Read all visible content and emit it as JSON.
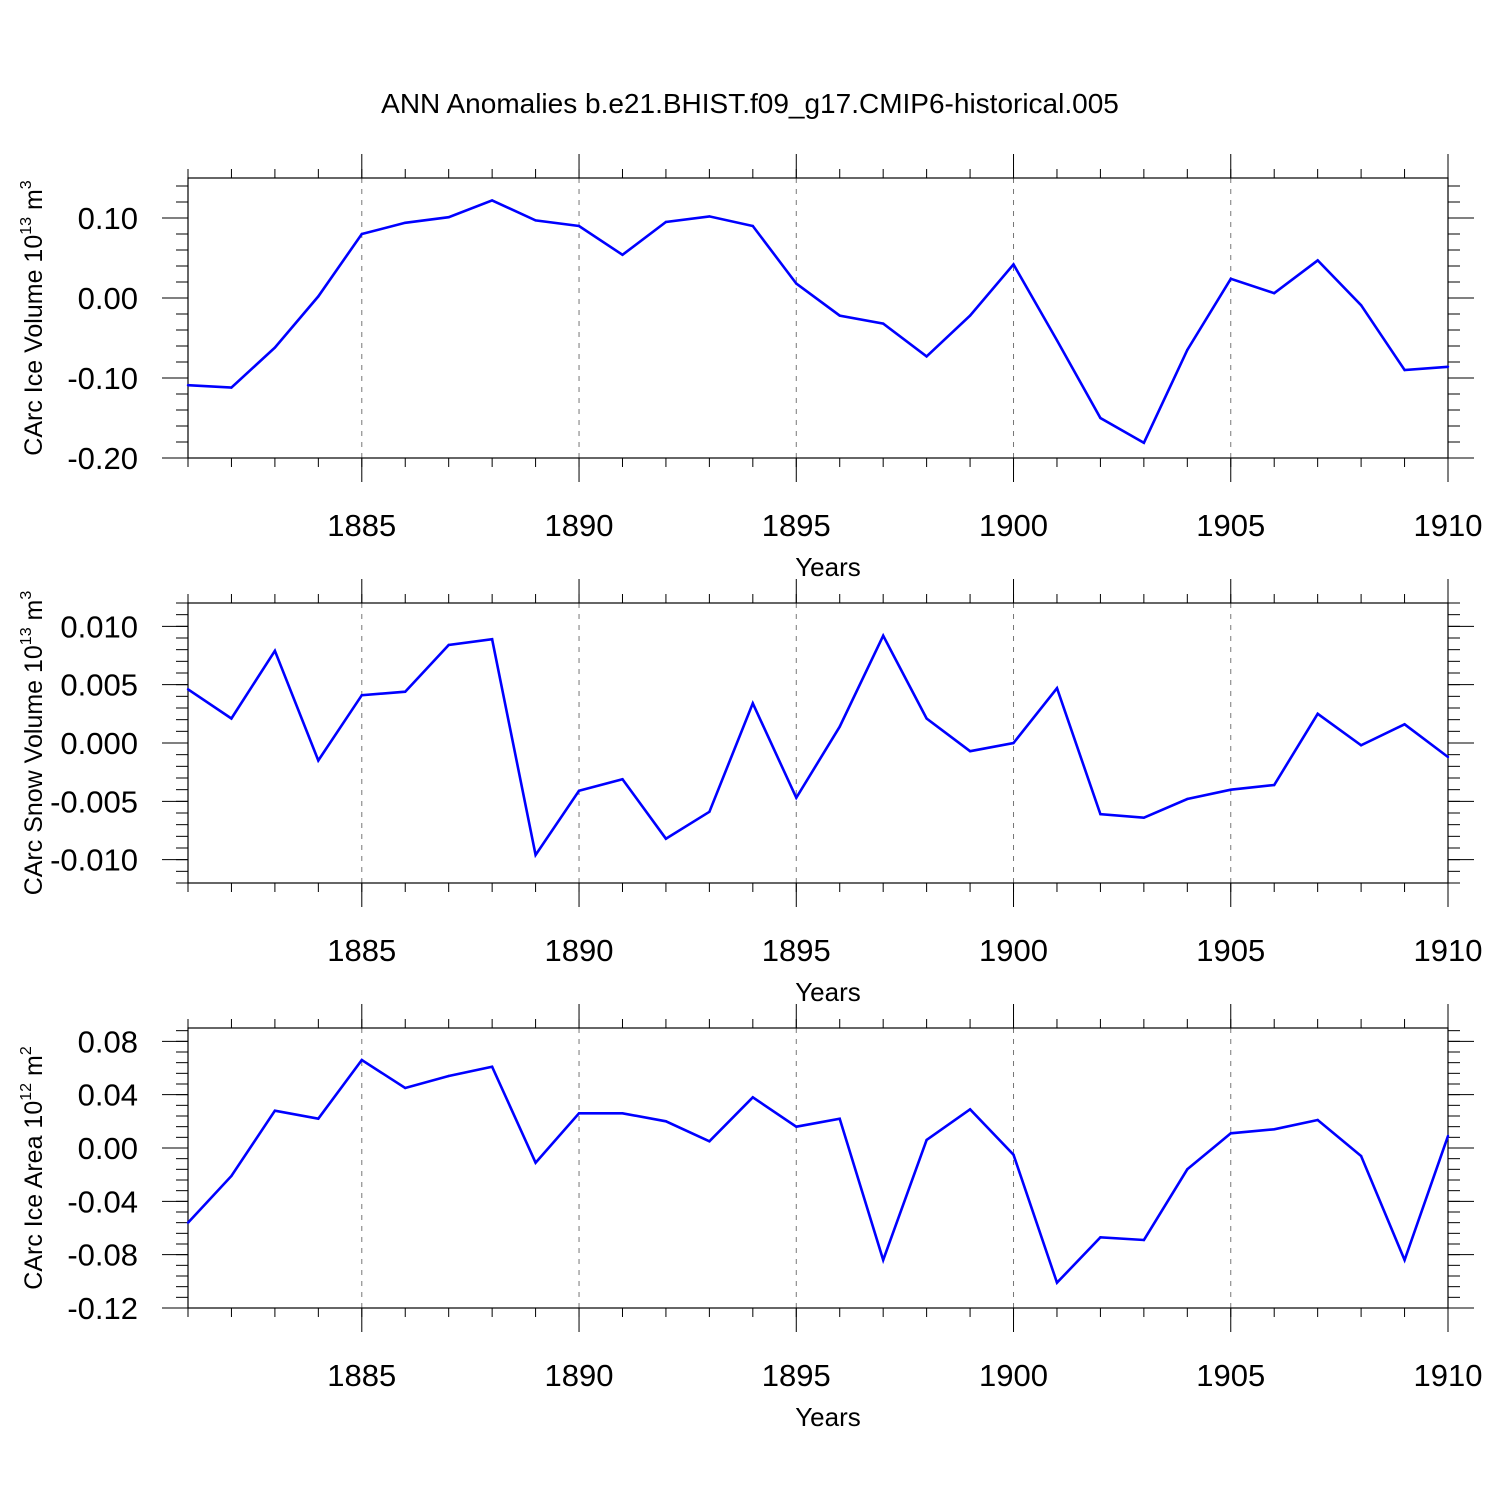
{
  "title": "ANN Anomalies b.e21.BHIST.f09_g17.CMIP6-historical.005",
  "colors": {
    "series": "#0000ff",
    "axes": "#000000",
    "grid": "#777777"
  },
  "chart_data": [
    {
      "type": "line",
      "name": "ice-volume",
      "ylabel_main": "CArc Ice Volume 10",
      "ylabel_exp": "13",
      "ylabel_unit": " m",
      "ylabel_unit_exp": "3",
      "xlabel": "Years",
      "xlim": [
        1881,
        1910
      ],
      "ylim": [
        -0.2,
        0.15
      ],
      "yticks": [
        -0.2,
        -0.1,
        0.0,
        0.1
      ],
      "ytick_labels": [
        "-0.20",
        "-0.10",
        "0.00",
        "0.10"
      ],
      "xticks": [
        1885,
        1890,
        1895,
        1900,
        1905,
        1910
      ],
      "xtick_labels": [
        "1885",
        "1890",
        "1895",
        "1900",
        "1905",
        "1910"
      ],
      "x": [
        1881,
        1882,
        1883,
        1884,
        1885,
        1886,
        1887,
        1888,
        1889,
        1890,
        1891,
        1892,
        1893,
        1894,
        1895,
        1896,
        1897,
        1898,
        1899,
        1900,
        1901,
        1902,
        1903,
        1904,
        1905,
        1906,
        1907,
        1908,
        1909,
        1910
      ],
      "values": [
        -0.109,
        -0.112,
        -0.062,
        0.002,
        0.08,
        0.094,
        0.101,
        0.122,
        0.097,
        0.09,
        0.054,
        0.095,
        0.102,
        0.09,
        0.018,
        -0.022,
        -0.032,
        -0.073,
        -0.022,
        0.042,
        -0.053,
        -0.15,
        -0.181,
        -0.065,
        0.024,
        0.006,
        0.047,
        -0.009,
        -0.09,
        -0.086
      ]
    },
    {
      "type": "line",
      "name": "snow-volume",
      "ylabel_main": "CArc Snow Volume 10",
      "ylabel_exp": "13",
      "ylabel_unit": " m",
      "ylabel_unit_exp": "3",
      "xlabel": "Years",
      "xlim": [
        1881,
        1910
      ],
      "ylim": [
        -0.012,
        0.012
      ],
      "yticks": [
        -0.01,
        -0.005,
        0.0,
        0.005,
        0.01
      ],
      "ytick_labels": [
        "-0.010",
        "-0.005",
        "0.000",
        "0.005",
        "0.010"
      ],
      "xticks": [
        1885,
        1890,
        1895,
        1900,
        1905,
        1910
      ],
      "xtick_labels": [
        "1885",
        "1890",
        "1895",
        "1900",
        "1905",
        "1910"
      ],
      "x": [
        1881,
        1882,
        1883,
        1884,
        1885,
        1886,
        1887,
        1888,
        1889,
        1890,
        1891,
        1892,
        1893,
        1894,
        1895,
        1896,
        1897,
        1898,
        1899,
        1900,
        1901,
        1902,
        1903,
        1904,
        1905,
        1906,
        1907,
        1908,
        1909,
        1910
      ],
      "values": [
        0.0046,
        0.0021,
        0.0079,
        -0.0015,
        0.0041,
        0.0044,
        0.0084,
        0.0089,
        -0.0096,
        -0.0041,
        -0.0031,
        -0.0082,
        -0.0059,
        0.0034,
        -0.0047,
        0.0014,
        0.0092,
        0.0021,
        -0.0007,
        0.0,
        0.0047,
        -0.0061,
        -0.0064,
        -0.0048,
        -0.004,
        -0.0036,
        0.0025,
        -0.0002,
        0.0016,
        -0.0012
      ]
    },
    {
      "type": "line",
      "name": "ice-area",
      "ylabel_main": "CArc Ice Area 10",
      "ylabel_exp": "12",
      "ylabel_unit": " m",
      "ylabel_unit_exp": "2",
      "xlabel": "Years",
      "xlim": [
        1881,
        1910
      ],
      "ylim": [
        -0.12,
        0.09
      ],
      "yticks": [
        -0.12,
        -0.08,
        -0.04,
        0.0,
        0.04,
        0.08
      ],
      "ytick_labels": [
        "-0.12",
        "-0.08",
        "-0.04",
        "0.00",
        "0.04",
        "0.08"
      ],
      "xticks": [
        1885,
        1890,
        1895,
        1900,
        1905,
        1910
      ],
      "xtick_labels": [
        "1885",
        "1890",
        "1895",
        "1900",
        "1905",
        "1910"
      ],
      "x": [
        1881,
        1882,
        1883,
        1884,
        1885,
        1886,
        1887,
        1888,
        1889,
        1890,
        1891,
        1892,
        1893,
        1894,
        1895,
        1896,
        1897,
        1898,
        1899,
        1900,
        1901,
        1902,
        1903,
        1904,
        1905,
        1906,
        1907,
        1908,
        1909,
        1910
      ],
      "values": [
        -0.056,
        -0.021,
        0.028,
        0.022,
        0.066,
        0.045,
        0.054,
        0.061,
        -0.011,
        0.026,
        0.026,
        0.02,
        0.005,
        0.038,
        0.016,
        0.022,
        -0.084,
        0.006,
        0.029,
        -0.005,
        -0.101,
        -0.067,
        -0.069,
        -0.016,
        0.011,
        0.014,
        0.021,
        -0.006,
        -0.084,
        0.009
      ]
    }
  ]
}
